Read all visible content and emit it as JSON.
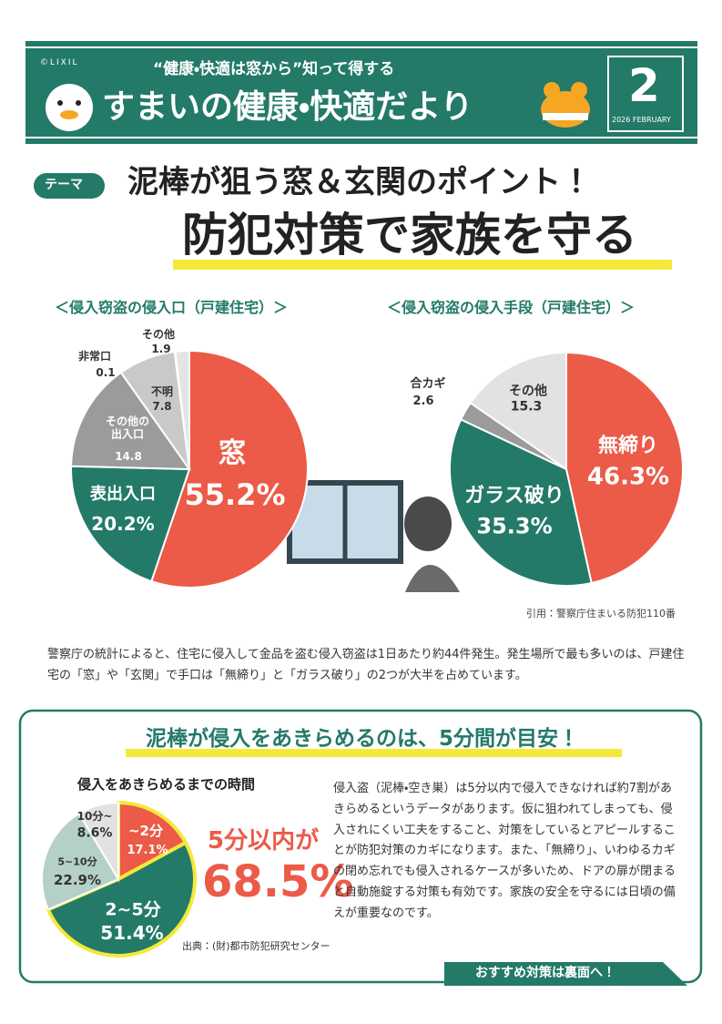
{
  "header": {
    "copyright": "©LIXIL",
    "subtitle": "“健康・快適は窓から”知って得する",
    "title": "すまいの健康・快適だより",
    "issue": "2",
    "date": "2026 FEBRUARY"
  },
  "theme": {
    "tag": "テーマ",
    "headline": "泥棒が狙う窓＆玄関のポイント！",
    "main": "防犯対策で家族を守る"
  },
  "chart_data": [
    {
      "type": "pie",
      "title": "＜侵入窃盗の侵入口（戸建住宅）＞",
      "categories": [
        "窓",
        "表出入口",
        "その他の\n出入口",
        "不明",
        "非常口",
        "その他"
      ],
      "values": [
        55.2,
        20.2,
        14.8,
        7.8,
        0.1,
        1.9
      ],
      "value_labels": [
        "55.2%",
        "20.2%",
        "14.8",
        "7.8",
        "0.1",
        "1.9"
      ],
      "colors": [
        "#ec5a48",
        "#237a68",
        "#9b9b9b",
        "#c9c9c9",
        "#7a7a7a",
        "#e4e4e4"
      ]
    },
    {
      "type": "pie",
      "title": "＜侵入窃盗の侵入手段（戸建住宅）＞",
      "categories": [
        "無締り",
        "ガラス破り",
        "合カギ",
        "その他"
      ],
      "values": [
        46.3,
        35.3,
        2.6,
        15.3
      ],
      "value_labels": [
        "46.3%",
        "35.3%",
        "2.6",
        "15.3"
      ],
      "colors": [
        "#ec5a48",
        "#237a68",
        "#9b9b9b",
        "#e2e2e2"
      ]
    },
    {
      "type": "pie",
      "title": "侵入をあきらめるまでの時間",
      "categories": [
        "~2分",
        "2~5分",
        "5~10分",
        "10分~"
      ],
      "values": [
        17.1,
        51.4,
        22.9,
        8.6
      ],
      "value_labels": [
        "17.1%",
        "51.4%",
        "22.9%",
        "8.6%"
      ],
      "colors": [
        "#ec5a48",
        "#237a68",
        "#b5cfc9",
        "#e2e2e2"
      ]
    }
  ],
  "source1": "引用：警察庁住まいる防犯110番",
  "paragraph1": "警察庁の統計によると、住宅に侵入して金品を盗む侵入窃盗は1日あたり約44件発生。発生場所で最も多いのは、戸建住宅の「窓」や「玄関」で手口は「無締り」と「ガラス破り」の2つが大半を占めています。",
  "box": {
    "headline": "泥棒が侵入をあきらめるのは、5分間が目安！",
    "highlight_label": "5分以内が",
    "highlight_value": "68.5%",
    "source": "出典：(財)都市防犯研究センター",
    "paragraph": "侵入盗（泥棒・空き巣）は5分以内で侵入できなければ約7割があきらめるというデータがあります。仮に狙われてしまっても、侵入されにくい工夫をすること、対策をしているとアピールすることが防犯対策のカギになります。また、「無締り」、いわゆるカギの閉め忘れでも侵入されるケースが多いため、ドアの扉が閉まると自動施錠する対策も有効です。家族の安全を守るには日頃の備えが重要なのです。",
    "ribbon": "おすすめ対策は裏面へ！"
  }
}
